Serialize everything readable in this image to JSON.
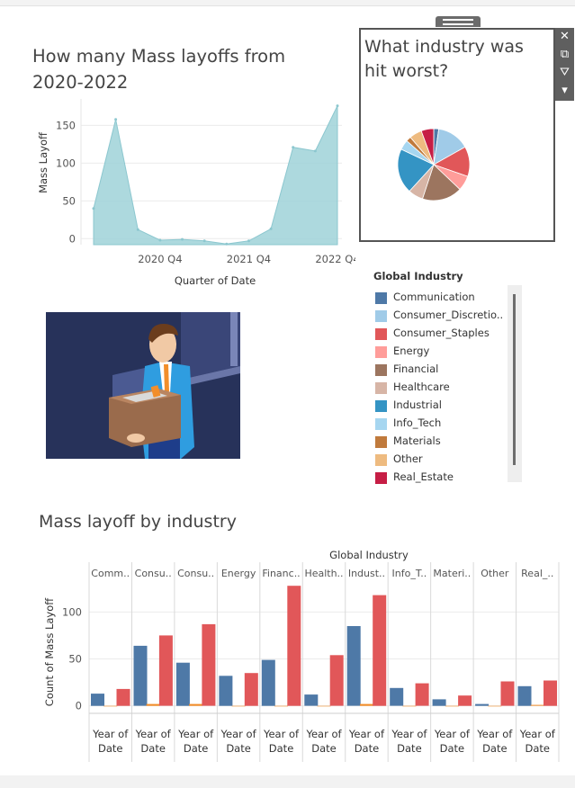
{
  "area_title": "How many Mass layoffs from 2020-2022",
  "pie_title": "What industry was hit worst?",
  "bar_title": "Mass layoff by industry",
  "toolbar": {
    "close_icon": "close-icon",
    "popout_icon": "popout-icon",
    "filter_icon": "filter-icon",
    "menu_icon": "dropdown-icon"
  },
  "legend": {
    "title": "Global Industry",
    "items": [
      {
        "label": "Communication",
        "color": "#4e79a7"
      },
      {
        "label": "Consumer_Discretio..",
        "color": "#a0cbe8"
      },
      {
        "label": "Consumer_Staples",
        "color": "#e15759"
      },
      {
        "label": "Energy",
        "color": "#ff9d9a"
      },
      {
        "label": "Financial",
        "color": "#9c755f"
      },
      {
        "label": "Healthcare",
        "color": "#d7b5a6"
      },
      {
        "label": "Industrial",
        "color": "#3494c4"
      },
      {
        "label": "Info_Tech",
        "color": "#a6d6f0"
      },
      {
        "label": "Materials",
        "color": "#c07a3c"
      },
      {
        "label": "Other",
        "color": "#eebb80"
      },
      {
        "label": "Real_Estate",
        "color": "#c61e45"
      }
    ]
  },
  "chart_data": [
    {
      "type": "area",
      "title": "How many Mass layoffs from 2020-2022",
      "xlabel": "Quarter of Date",
      "ylabel": "Mass Layoff",
      "x_ticks": [
        "2020 Q4",
        "2021 Q4",
        "2022 Q4"
      ],
      "y_ticks": [
        0,
        50,
        100,
        150
      ],
      "ylim": [
        -8,
        185
      ],
      "color": "#9fd2d8",
      "values": [
        40,
        158,
        12,
        -2,
        -1,
        -3,
        -7,
        -3,
        13,
        121,
        116,
        176
      ],
      "grid": true
    },
    {
      "type": "pie",
      "title": "What industry was hit worst?",
      "slices": [
        {
          "label": "Communication",
          "value": 2,
          "color": "#4e79a7"
        },
        {
          "label": "Consumer_Discretio..",
          "value": 13,
          "color": "#a0cbe8"
        },
        {
          "label": "Consumer_Staples",
          "value": 12,
          "color": "#e15759"
        },
        {
          "label": "Energy",
          "value": 6,
          "color": "#ff9d9a"
        },
        {
          "label": "Financial",
          "value": 16,
          "color": "#9c755f"
        },
        {
          "label": "Healthcare",
          "value": 6,
          "color": "#d7b5a6"
        },
        {
          "label": "Industrial",
          "value": 18,
          "color": "#3494c4"
        },
        {
          "label": "Info_Tech",
          "value": 4,
          "color": "#a6d6f0"
        },
        {
          "label": "Materials",
          "value": 2,
          "color": "#c07a3c"
        },
        {
          "label": "Other",
          "value": 5,
          "color": "#eebb80"
        },
        {
          "label": "Real_Estate",
          "value": 5,
          "color": "#c61e45"
        }
      ]
    },
    {
      "type": "bar",
      "title": "Mass layoff by industry",
      "group_header": "Global Industry",
      "ylabel": "Count of Mass Layoff",
      "bottom_label": "Year of Date",
      "y_ticks": [
        0,
        50,
        100
      ],
      "ylim": [
        -8,
        132
      ],
      "categories": [
        "Comm..",
        "Consu..",
        "Consu..",
        "Energy",
        "Financ..",
        "Health..",
        "Indust..",
        "Info_T..",
        "Materi..",
        "Other",
        "Real_.."
      ],
      "series": [
        {
          "color": "#4e79a7",
          "values": [
            13,
            64,
            46,
            32,
            49,
            12,
            85,
            19,
            7,
            2,
            21
          ]
        },
        {
          "color": "#f28e2b",
          "values": [
            0,
            2,
            2,
            0,
            0,
            0,
            2,
            0,
            0,
            0,
            1
          ]
        },
        {
          "color": "#e15759",
          "values": [
            18,
            75,
            87,
            35,
            128,
            54,
            118,
            24,
            11,
            26,
            27
          ]
        }
      ]
    }
  ]
}
